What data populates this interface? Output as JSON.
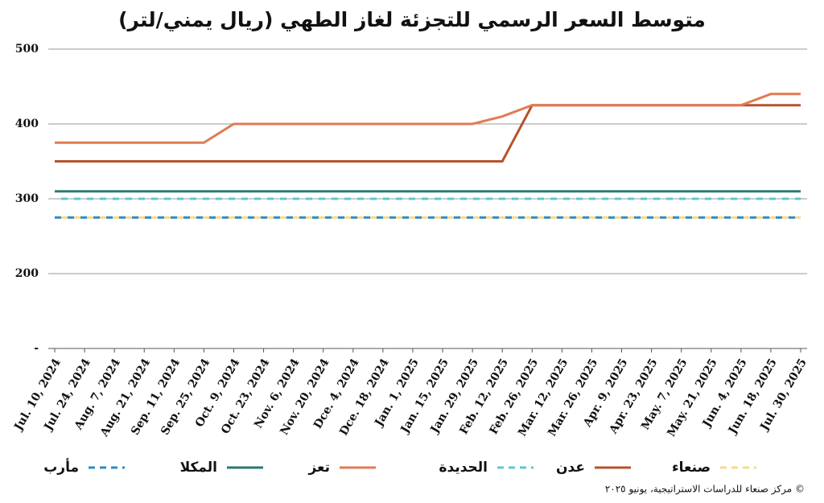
{
  "chart_data": {
    "type": "line",
    "title": "متوسط السعر الرسمي للتجزئة لغاز الطهي (ريال يمني/لتر)",
    "source": "© مركز صنعاء للدراسات الاستراتيجية، يونيو ٢٠٢٥",
    "categories": [
      "Jul. 10, 2024",
      "Jul. 24, 2024",
      "Aug. 7, 2024",
      "Aug. 21, 2024",
      "Sep. 11, 2024",
      "Sep. 25, 2024",
      "Oct. 9, 2024",
      "Oct. 23, 2024",
      "Nov. 6, 2024",
      "Nov. 20, 2024",
      "Dce. 4, 2024",
      "Dce. 18, 2024",
      "Jan. 1, 2025",
      "Jan. 15, 2025",
      "Jan. 29, 2025",
      "Feb. 12, 2025",
      "Feb. 26, 2025",
      "Mar. 12, 2025",
      "Mar. 26, 2025",
      "Apr. 9, 2025",
      "Apr. 23, 2025",
      "May. 7, 2025",
      "May. 21, 2025",
      "Jun. 4, 2025",
      "Jun. 18, 2025",
      "Jul. 30, 2025"
    ],
    "ylim": [
      100,
      500
    ],
    "yticks": [
      {
        "value": 100,
        "label": "-"
      },
      200,
      300,
      400,
      500
    ],
    "grid": true,
    "series": [
      {
        "name": "صنعاء",
        "color": "#f7d98c",
        "dashed": true,
        "values": [
          275,
          275,
          275,
          275,
          275,
          275,
          275,
          275,
          275,
          275,
          275,
          275,
          275,
          275,
          275,
          275,
          275,
          275,
          275,
          275,
          275,
          275,
          275,
          275,
          275,
          275
        ]
      },
      {
        "name": "عدن",
        "color": "#b5532c",
        "dashed": false,
        "values": [
          350,
          350,
          350,
          350,
          350,
          350,
          350,
          350,
          350,
          350,
          350,
          350,
          350,
          350,
          350,
          350,
          425,
          425,
          425,
          425,
          425,
          425,
          425,
          425,
          425,
          425
        ]
      },
      {
        "name": "الحديدة",
        "color": "#5cc8d0",
        "dashed": true,
        "values": [
          300,
          300,
          300,
          300,
          300,
          300,
          300,
          300,
          300,
          300,
          300,
          300,
          300,
          300,
          300,
          300,
          300,
          300,
          300,
          300,
          300,
          300,
          300,
          300,
          300,
          300
        ]
      },
      {
        "name": "تعز",
        "color": "#e07b54",
        "dashed": false,
        "values": [
          375,
          375,
          375,
          375,
          375,
          375,
          400,
          400,
          400,
          400,
          400,
          400,
          400,
          400,
          400,
          410,
          425,
          425,
          425,
          425,
          425,
          425,
          425,
          425,
          440,
          440
        ]
      },
      {
        "name": "المكلا",
        "color": "#2a7a72",
        "dashed": false,
        "values": [
          310,
          310,
          310,
          310,
          310,
          310,
          310,
          310,
          310,
          310,
          310,
          310,
          310,
          310,
          310,
          310,
          310,
          310,
          310,
          310,
          310,
          310,
          310,
          310,
          310,
          310
        ]
      },
      {
        "name": "مأرب",
        "color": "#2e8bc0",
        "dashed": true,
        "values": [
          275,
          275,
          275,
          275,
          275,
          275,
          275,
          275,
          275,
          275,
          275,
          275,
          275,
          275,
          275,
          275,
          275,
          275,
          275,
          275,
          275,
          275,
          275,
          275,
          275,
          275
        ]
      }
    ]
  }
}
